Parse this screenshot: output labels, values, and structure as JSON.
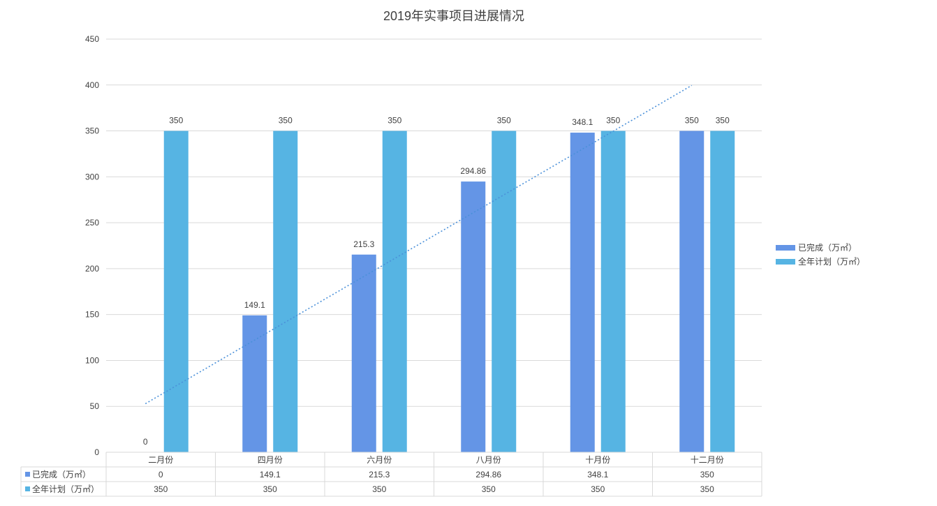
{
  "chart_data": {
    "type": "bar",
    "title": "2019年实事项目进展情况",
    "categories": [
      "二月份",
      "四月份",
      "六月份",
      "八月份",
      "十月份",
      "十二月份"
    ],
    "series": [
      {
        "name": "已完成（万㎡）",
        "values": [
          0,
          149.1,
          215.3,
          294.86,
          348.1,
          350
        ],
        "color": "#6495E6"
      },
      {
        "name": "全年计划（万㎡）",
        "values": [
          350,
          350,
          350,
          350,
          350,
          350
        ],
        "color": "#56B4E3"
      }
    ],
    "ylim": [
      0,
      450
    ],
    "yticks": [
      0,
      50,
      100,
      150,
      200,
      250,
      300,
      350,
      400,
      450
    ],
    "trendline": {
      "series": 0,
      "type": "linear",
      "style": "dotted",
      "color": "#4A90D9"
    },
    "grid": true,
    "legend": "right",
    "data_table": true,
    "xlabel": "",
    "ylabel": ""
  }
}
